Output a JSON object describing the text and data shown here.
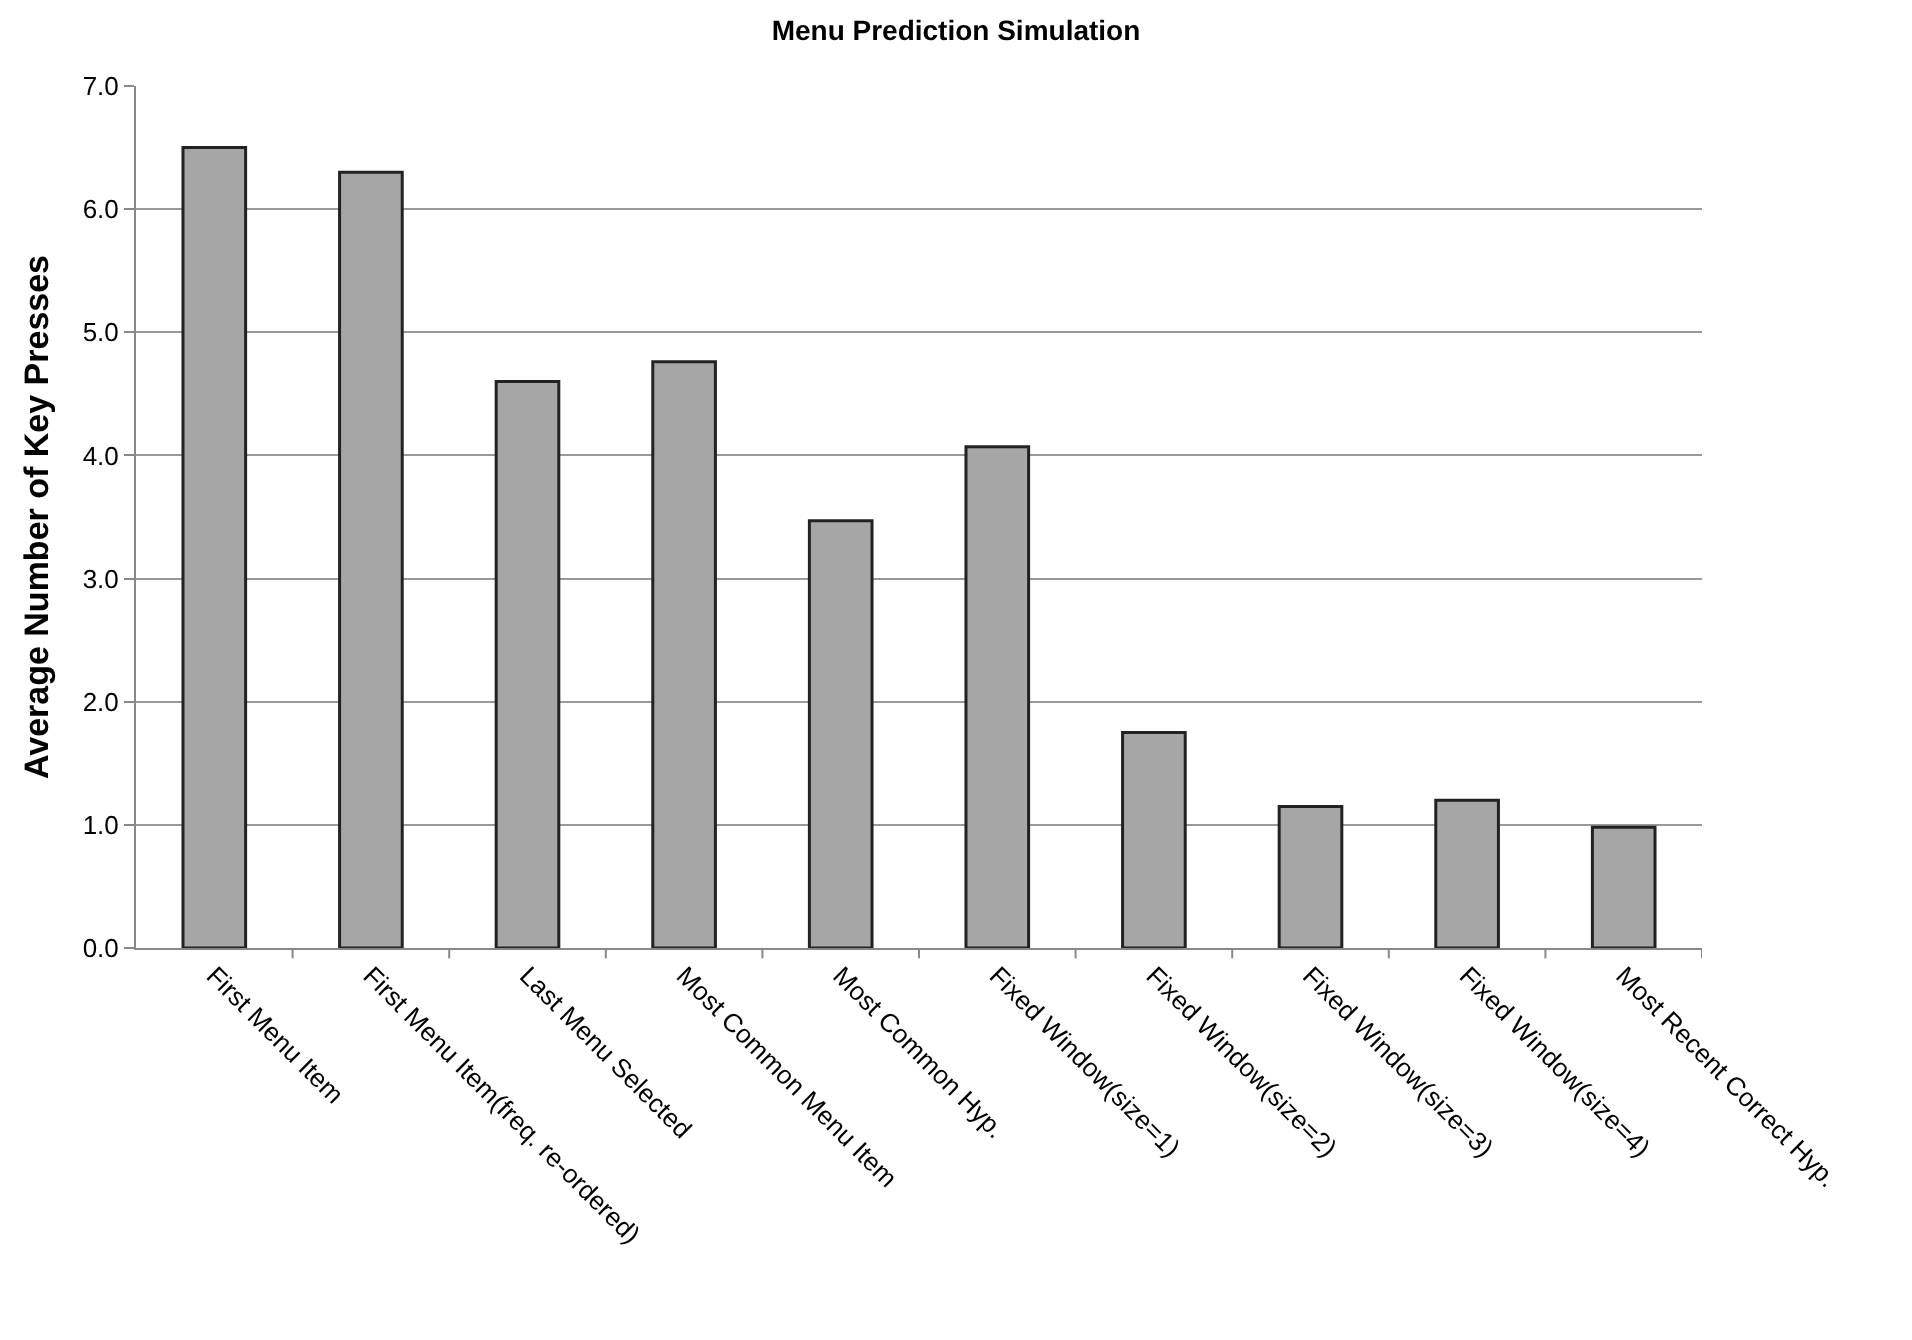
{
  "chart_data": {
    "type": "bar",
    "title": "Menu Prediction Simulation",
    "ylabel": "Average Number of Key Presses",
    "categories": [
      "First Menu Item",
      "First Menu Item(freq. re-ordered)",
      "Last Menu Selected",
      "Most Common Menu Item",
      "Most Common Hyp.",
      "Fixed Window(size=1)",
      "Fixed Window(size=2)",
      "Fixed Window(size=3)",
      "Fixed Window(size=4)",
      "Most Recent Correct Hyp."
    ],
    "values": [
      6.5,
      6.3,
      4.6,
      4.76,
      3.47,
      4.07,
      1.75,
      1.15,
      1.2,
      0.98
    ],
    "color": "#a6a6a6",
    "ylim": [
      0,
      7
    ],
    "yticks": [
      {
        "value": 0,
        "label": "0.0"
      },
      {
        "value": 1,
        "label": "1.0"
      },
      {
        "value": 2,
        "label": "2.0"
      },
      {
        "value": 3,
        "label": "3.0"
      },
      {
        "value": 4,
        "label": "4.0"
      },
      {
        "value": 5,
        "label": "5.0"
      },
      {
        "value": 6,
        "label": "6.0"
      },
      {
        "value": 7,
        "label": "7.0"
      }
    ],
    "grid": "y",
    "legend": false
  }
}
